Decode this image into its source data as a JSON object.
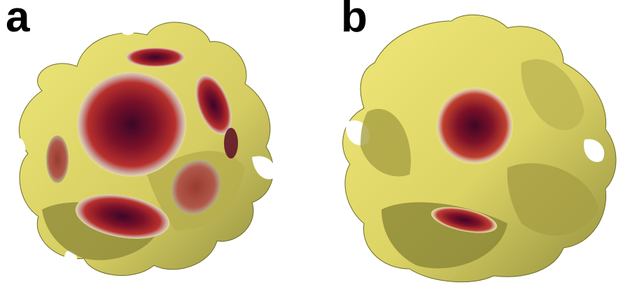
{
  "panels": [
    {
      "label": "a"
    },
    {
      "label": "b"
    }
  ],
  "colors": {
    "surface": "#e8e070",
    "surface_shadow": "#9c9a48",
    "spot_core": "#5a0a24",
    "spot_mid": "#a8222c",
    "spot_rim": "#d8d0c0"
  }
}
